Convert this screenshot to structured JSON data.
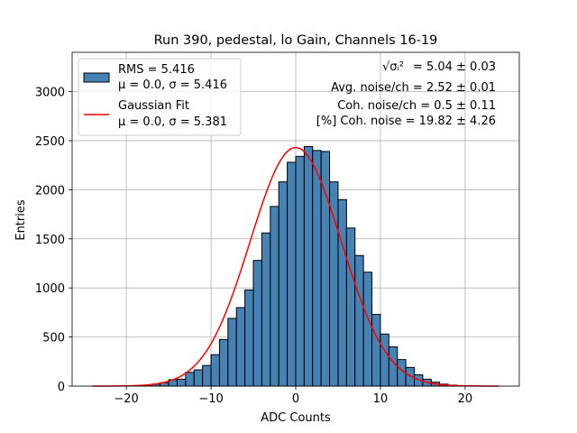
{
  "chart_data": {
    "type": "bar",
    "title": "Run 390, pedestal, lo Gain, Channels 16-19",
    "xlabel": "ADC Counts",
    "ylabel": "Entries",
    "xlim": [
      -26.4,
      26.4
    ],
    "ylim": [
      0,
      3400
    ],
    "grid": true,
    "legend_placement": "top-left",
    "xticks": [
      -20,
      -10,
      0,
      10,
      20
    ],
    "xtick_labels": [
      "−20",
      "−10",
      "0",
      "10",
      "20"
    ],
    "yticks": [
      0,
      500,
      1000,
      1500,
      2000,
      2500,
      3000
    ],
    "ytick_labels": [
      "0",
      "500",
      "1000",
      "1500",
      "2000",
      "2500",
      "3000"
    ],
    "histogram": {
      "name": "RMS = 5.416",
      "sublabel": "μ = 0.0, σ = 5.416",
      "bin_width": 1,
      "bin_edges_start": -24,
      "values": [
        0,
        0,
        0,
        1,
        2,
        5,
        8,
        20,
        35,
        65,
        70,
        140,
        165,
        210,
        320,
        475,
        690,
        800,
        980,
        1280,
        1560,
        1830,
        2080,
        2280,
        2340,
        2440,
        2400,
        2390,
        2080,
        1900,
        1610,
        1330,
        1160,
        730,
        530,
        400,
        270,
        190,
        115,
        70,
        40,
        20,
        10,
        5,
        2,
        1,
        0,
        0
      ],
      "color": "#4682b4"
    },
    "fit": {
      "name": "Gaussian Fit",
      "sublabel": "μ = 0.0, σ = 5.381",
      "mu": 0.0,
      "sigma": 5.381,
      "amplitude": 2430,
      "x_range": [
        -24,
        24
      ],
      "color": "#ff0000"
    },
    "annotations": [
      {
        "label": "√σᵢ²",
        "text": " = 5.04 ± 0.03"
      },
      {
        "text": "Avg. noise/ch = 2.52 ± 0.01"
      },
      {
        "text": "Coh. noise/ch = 0.5 ± 0.11"
      },
      {
        "text": "[%] Coh. noise = 19.82 ± 4.26"
      }
    ]
  }
}
